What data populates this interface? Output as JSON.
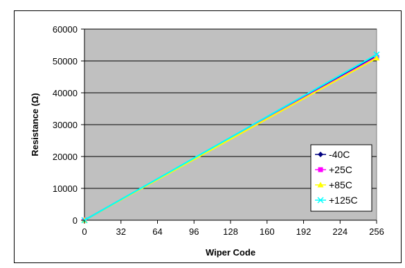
{
  "chart_data": {
    "type": "line",
    "title": "",
    "xlabel": "Wiper Code",
    "ylabel": "Resistance (Ω)",
    "xlim": [
      0,
      256
    ],
    "ylim": [
      0,
      60000
    ],
    "x_ticks": [
      0,
      32,
      64,
      96,
      128,
      160,
      192,
      224,
      256
    ],
    "y_ticks": [
      0,
      10000,
      20000,
      30000,
      40000,
      50000,
      60000
    ],
    "grid": "horizontal",
    "plot_background": "#c0c0c0",
    "legend_position": "bottom-right",
    "x": [
      0,
      256
    ],
    "series": [
      {
        "name": "-40C",
        "color": "#000080",
        "marker": "diamond",
        "values": [
          0,
          51500
        ]
      },
      {
        "name": "+25C",
        "color": "#ff00ff",
        "marker": "square",
        "values": [
          0,
          51200
        ]
      },
      {
        "name": "+85C",
        "color": "#ffff00",
        "marker": "triangle",
        "values": [
          0,
          50900
        ]
      },
      {
        "name": "+125C",
        "color": "#00ffff",
        "marker": "x",
        "values": [
          0,
          52000
        ]
      }
    ]
  }
}
